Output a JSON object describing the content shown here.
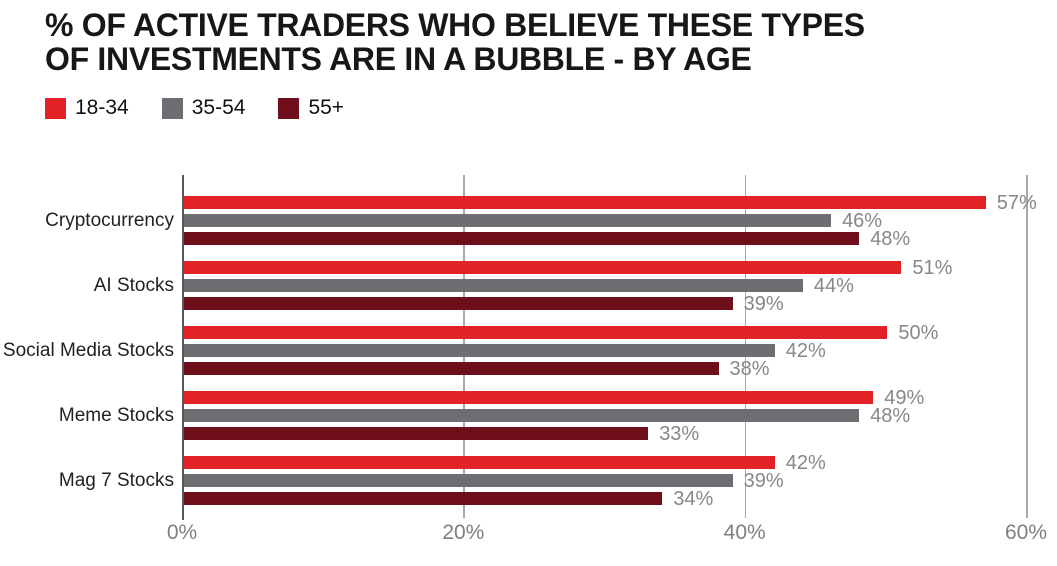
{
  "title": {
    "lines": [
      "% OF ACTIVE TRADERS WHO BELIEVE THESE TYPES",
      "OF INVESTMENTS ARE IN A BUBBLE - BY AGE"
    ]
  },
  "colors": {
    "background": "#FFFFFF",
    "title_text": "#171717",
    "category_text": "#231F20",
    "value_label_text": "#86878B",
    "tick_label_text": "#7E7F83",
    "axis_line": "#55565A",
    "grid_line": "#A8A8AA",
    "series_18_34": "#E22227",
    "series_35_54": "#6D6E71",
    "series_55_plus": "#6E0F1B"
  },
  "chart_data": {
    "type": "bar",
    "orientation": "horizontal",
    "title": "% OF ACTIVE TRADERS WHO BELIEVE THESE TYPES OF INVESTMENTS ARE IN A BUBBLE - BY AGE",
    "categories": [
      "Cryptocurrency",
      "AI Stocks",
      "Social Media Stocks",
      "Meme Stocks",
      "Mag 7 Stocks"
    ],
    "series": [
      {
        "name": "18-34",
        "color": "#E22227",
        "values": [
          57,
          51,
          50,
          49,
          42
        ]
      },
      {
        "name": "35-54",
        "color": "#6D6E71",
        "values": [
          46,
          44,
          42,
          48,
          39
        ]
      },
      {
        "name": "55+",
        "color": "#6E0F1B",
        "values": [
          48,
          39,
          38,
          33,
          34
        ]
      }
    ],
    "value_suffix": "%",
    "value_labels_shown": true,
    "x_ticks": [
      {
        "value": 0,
        "label": "0%"
      },
      {
        "value": 20,
        "label": "20%"
      },
      {
        "value": 40,
        "label": "40%"
      },
      {
        "value": 60,
        "label": "60%"
      }
    ],
    "xlim": [
      0,
      60
    ],
    "xlabel": "",
    "ylabel": "",
    "grid": "vertical",
    "legend_position": "top-left"
  }
}
